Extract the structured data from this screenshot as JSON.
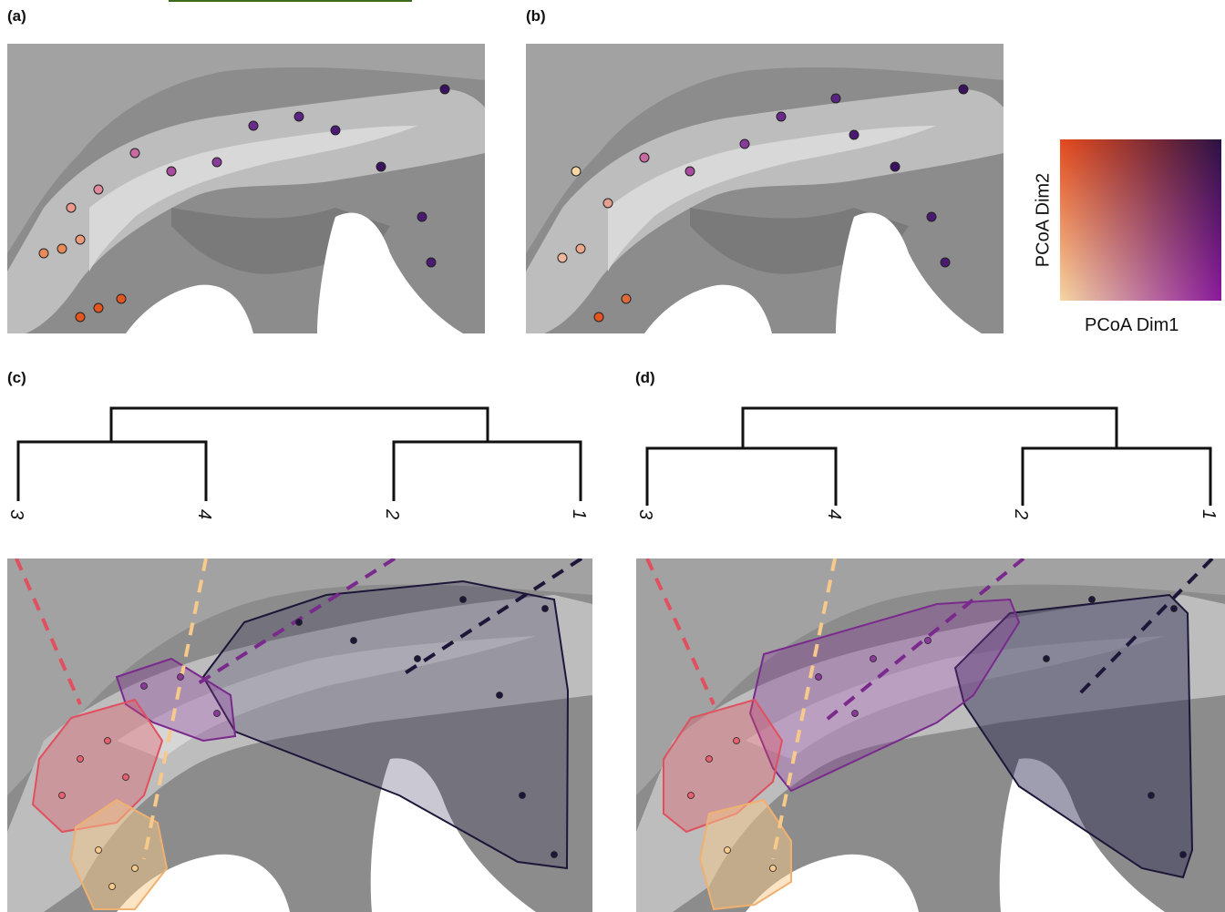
{
  "panels": {
    "a": "(a)",
    "b": "(b)",
    "c": "(c)",
    "d": "(d)"
  },
  "legend": {
    "x_label": "PCoA Dim1",
    "y_label": "PCoA Dim2",
    "colors": {
      "bottom_left": "#f6d6a3",
      "top_left": "#e4491d",
      "top_right": "#2a1244",
      "bottom_right": "#8b1a9c"
    }
  },
  "dendrogram_c": {
    "tips": [
      "3",
      "4",
      "2",
      "1"
    ]
  },
  "dendrogram_d": {
    "tips": [
      "3",
      "4",
      "2",
      "1"
    ]
  },
  "cluster_colors": {
    "1": "#1e1638",
    "2": "#7a2a8c",
    "3": "#e0505e",
    "4": "#f7c98a"
  }
}
